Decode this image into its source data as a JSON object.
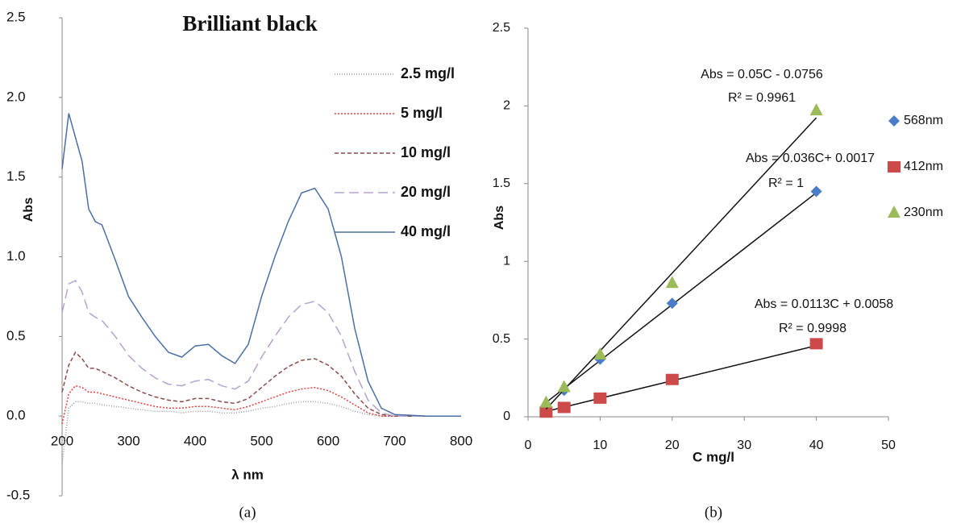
{
  "chart_data": [
    {
      "type": "line",
      "title": "Brilliant black",
      "xlabel": "λ nm",
      "ylabel": "Abs",
      "caption": "(a)",
      "x": [
        200,
        210,
        220,
        230,
        240,
        250,
        260,
        280,
        300,
        320,
        340,
        360,
        380,
        400,
        420,
        440,
        460,
        480,
        500,
        520,
        540,
        560,
        580,
        600,
        620,
        640,
        660,
        680,
        700,
        750,
        800
      ],
      "series": [
        {
          "name": "2.5 mg/l",
          "color": "#9a9a9a",
          "values": [
            -0.3,
            0.05,
            0.09,
            0.09,
            0.08,
            0.08,
            0.07,
            0.06,
            0.05,
            0.04,
            0.03,
            0.03,
            0.02,
            0.03,
            0.03,
            0.02,
            0.02,
            0.03,
            0.05,
            0.06,
            0.08,
            0.09,
            0.09,
            0.08,
            0.06,
            0.03,
            0.01,
            0,
            0,
            0,
            0
          ]
        },
        {
          "name": "5 mg/l",
          "color": "#e5413b",
          "values": [
            -0.05,
            0.14,
            0.19,
            0.18,
            0.15,
            0.15,
            0.14,
            0.12,
            0.1,
            0.08,
            0.06,
            0.05,
            0.05,
            0.06,
            0.06,
            0.05,
            0.04,
            0.06,
            0.09,
            0.12,
            0.15,
            0.17,
            0.18,
            0.16,
            0.12,
            0.07,
            0.02,
            0,
            0,
            0,
            0
          ]
        },
        {
          "name": "10 mg/l",
          "color": "#8e4b4b",
          "values": [
            0.15,
            0.32,
            0.4,
            0.36,
            0.3,
            0.3,
            0.28,
            0.24,
            0.19,
            0.15,
            0.12,
            0.1,
            0.09,
            0.11,
            0.11,
            0.09,
            0.08,
            0.11,
            0.18,
            0.25,
            0.31,
            0.35,
            0.36,
            0.32,
            0.25,
            0.14,
            0.05,
            0.01,
            0,
            0,
            0
          ]
        },
        {
          "name": "20 mg/l",
          "color": "#b5a2d2",
          "values": [
            0.65,
            0.83,
            0.85,
            0.78,
            0.65,
            0.62,
            0.6,
            0.5,
            0.38,
            0.3,
            0.24,
            0.2,
            0.19,
            0.22,
            0.23,
            0.19,
            0.17,
            0.22,
            0.37,
            0.5,
            0.62,
            0.7,
            0.72,
            0.65,
            0.5,
            0.28,
            0.1,
            0.02,
            0,
            0,
            0
          ]
        },
        {
          "name": "40 mg/l",
          "color": "#4a6fa5",
          "values": [
            1.55,
            1.9,
            1.75,
            1.6,
            1.3,
            1.22,
            1.2,
            0.98,
            0.75,
            0.62,
            0.5,
            0.4,
            0.37,
            0.44,
            0.45,
            0.38,
            0.33,
            0.45,
            0.75,
            1.0,
            1.22,
            1.4,
            1.43,
            1.3,
            1.0,
            0.55,
            0.22,
            0.05,
            0.01,
            0,
            0
          ]
        }
      ],
      "xlim": [
        200,
        800
      ],
      "xticks": [
        200,
        300,
        400,
        500,
        600,
        700,
        800
      ],
      "ylim": [
        -0.5,
        2.5
      ],
      "yticks": [
        -0.5,
        {
          "value": 0,
          "label": "0.0"
        },
        0.5,
        {
          "value": 1,
          "label": "1.0"
        },
        1.5,
        {
          "value": 2,
          "label": "2.0"
        },
        2.5
      ]
    },
    {
      "type": "scatter",
      "xlabel": "C mg/l",
      "ylabel": "Abs",
      "caption": "(b)",
      "x": [
        2.5,
        5,
        10,
        20,
        40
      ],
      "series": [
        {
          "name": "568nm",
          "color": "#4a7cc7",
          "marker": "diamond",
          "values": [
            0.07,
            0.17,
            0.37,
            0.73,
            1.45
          ],
          "trendline": {
            "slope": 0.036,
            "intercept": 0.0017,
            "equation": "Abs = 0.036C+ 0.0017",
            "r2": "R² = 1"
          }
        },
        {
          "name": "412nm",
          "color": "#cc4a4a",
          "marker": "square",
          "values": [
            0.03,
            0.06,
            0.12,
            0.24,
            0.47
          ],
          "trendline": {
            "slope": 0.0113,
            "intercept": 0.0058,
            "equation": "Abs = 0.0113C + 0.0058",
            "r2": "R² = 0.9998"
          }
        },
        {
          "name": "230nm",
          "color": "#9bbb59",
          "marker": "triangle",
          "values": [
            0.09,
            0.19,
            0.4,
            0.86,
            1.97
          ],
          "trendline": {
            "slope": 0.05,
            "intercept": -0.0756,
            "equation": "Abs = 0.05C - 0.0756",
            "r2": "R² = 0.9961"
          }
        }
      ],
      "xlim": [
        0,
        50
      ],
      "xticks": [
        0,
        10,
        20,
        30,
        40,
        50
      ],
      "ylim": [
        0,
        2.5
      ],
      "yticks": [
        0,
        0.5,
        1,
        1.5,
        2,
        2.5
      ]
    }
  ]
}
